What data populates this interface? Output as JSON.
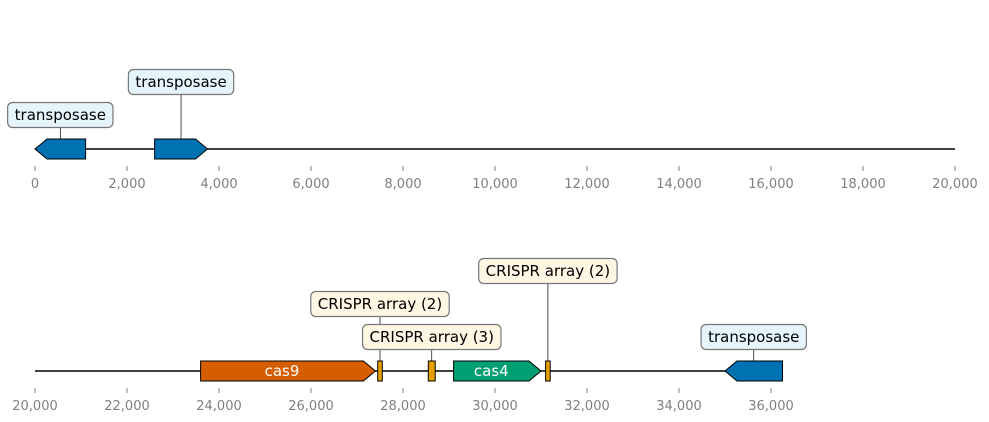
{
  "colors": {
    "transposase": "#0072b2",
    "cas9": "#d55e00",
    "cas4": "#009e73",
    "crispr": "#e69f00",
    "label_fill_transposase": "#e6f4fb",
    "label_fill_crispr": "#fff6e3",
    "label_stroke": "#777777",
    "axis_line": "#000000",
    "tick_text": "#808080"
  },
  "tracks": [
    {
      "range": [
        0,
        20000
      ],
      "ticks": [
        0,
        2000,
        4000,
        6000,
        8000,
        10000,
        12000,
        14000,
        16000,
        18000,
        20000
      ],
      "tick_labels": [
        "0",
        "2,000",
        "4,000",
        "6,000",
        "8,000",
        "10,000",
        "12,000",
        "14,000",
        "16,000",
        "18,000",
        "20,000"
      ],
      "features": [
        {
          "start": 0,
          "end": 1100,
          "strand": -1,
          "type": "transposase",
          "label": "transposase",
          "label_level": 1,
          "inner_label": ""
        },
        {
          "start": 2600,
          "end": 3750,
          "strand": 1,
          "type": "transposase",
          "label": "transposase",
          "label_level": 2,
          "inner_label": ""
        }
      ]
    },
    {
      "range": [
        20000,
        40000
      ],
      "ticks": [
        20000,
        22000,
        24000,
        26000,
        28000,
        30000,
        32000,
        34000,
        36000
      ],
      "tick_labels": [
        "20,000",
        "22,000",
        "24,000",
        "26,000",
        "28,000",
        "30,000",
        "32,000",
        "34,000",
        "36,000"
      ],
      "features": [
        {
          "start": 23600,
          "end": 27400,
          "strand": 1,
          "type": "cas9",
          "label": "",
          "label_level": 0,
          "inner_label": "cas9"
        },
        {
          "start": 27450,
          "end": 27550,
          "strand": 0,
          "type": "crispr",
          "label": "CRISPR array (2)",
          "label_level": 2,
          "inner_label": ""
        },
        {
          "start": 28550,
          "end": 28700,
          "strand": 0,
          "type": "crispr",
          "label": "CRISPR array (3)",
          "label_level": 1,
          "inner_label": ""
        },
        {
          "start": 29100,
          "end": 31000,
          "strand": 1,
          "type": "cas4",
          "label": "",
          "label_level": 0,
          "inner_label": "cas4"
        },
        {
          "start": 31100,
          "end": 31200,
          "strand": 0,
          "type": "crispr",
          "label": "CRISPR array (2)",
          "label_level": 3,
          "inner_label": ""
        },
        {
          "start": 35000,
          "end": 36250,
          "strand": -1,
          "type": "transposase",
          "label": "transposase",
          "label_level": 1,
          "inner_label": ""
        }
      ]
    }
  ]
}
